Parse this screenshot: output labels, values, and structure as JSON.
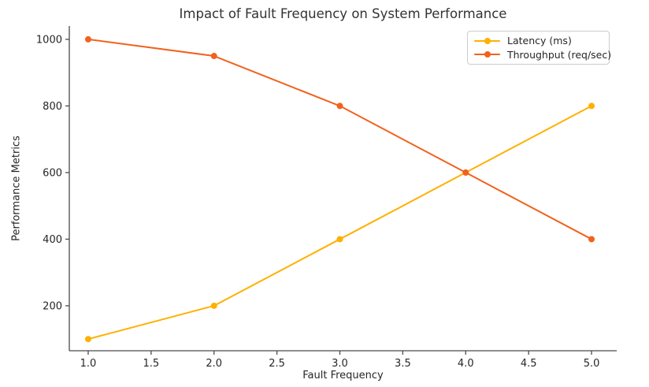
{
  "chart_data": {
    "type": "line",
    "title": "Impact of Fault Frequency on System Performance",
    "xlabel": "Fault Frequency",
    "ylabel": "Performance Metrics",
    "x": [
      1.0,
      2.0,
      3.0,
      4.0,
      5.0
    ],
    "series": [
      {
        "name": "Latency (ms)",
        "values": [
          100,
          200,
          400,
          600,
          800
        ],
        "color": "#FFB000"
      },
      {
        "name": "Throughput (req/sec)",
        "values": [
          1000,
          950,
          800,
          600,
          400
        ],
        "color": "#F1621E"
      }
    ],
    "xlim": [
      0.85,
      5.2
    ],
    "ylim": [
      65,
      1040
    ],
    "xticks": [
      1.0,
      1.5,
      2.0,
      2.5,
      3.0,
      3.5,
      4.0,
      4.5,
      5.0
    ],
    "xtick_labels": [
      "1.0",
      "1.5",
      "2.0",
      "2.5",
      "3.0",
      "3.5",
      "4.0",
      "4.5",
      "5.0"
    ],
    "yticks": [
      200,
      400,
      600,
      800,
      1000
    ],
    "ytick_labels": [
      "200",
      "400",
      "600",
      "800",
      "1000"
    ],
    "grid": false,
    "legend_position": "upper right",
    "legend": [
      "Latency (ms)",
      "Throughput (req/sec)"
    ],
    "marker": "circle",
    "axis_color": "#4a4a4a",
    "text_color": "#262626",
    "background": "#ffffff",
    "legend_border_color": "#cccccc"
  }
}
